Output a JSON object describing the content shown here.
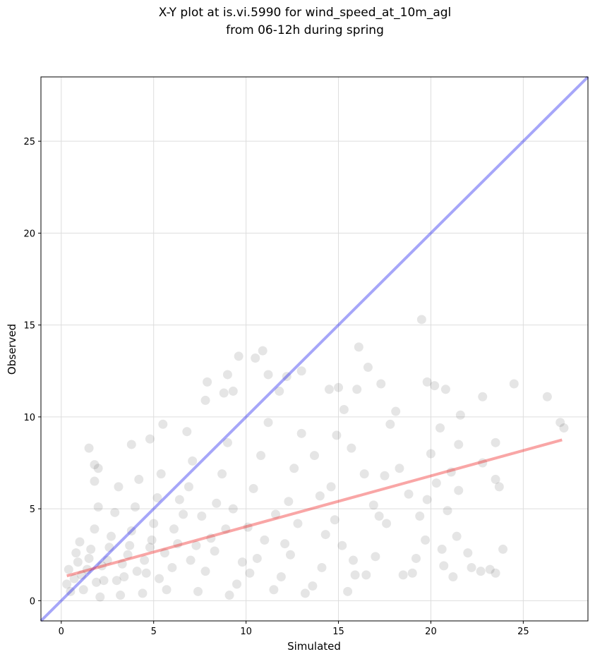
{
  "chart_data": {
    "type": "scatter",
    "title_lines": [
      "X-Y plot at is.vi.5990 for wind_speed_at_10m_agl",
      "from 06-12h during spring"
    ],
    "xlabel": "Simulated",
    "ylabel": "Observed",
    "xlim": [
      -1.1,
      28.5
    ],
    "ylim": [
      -1.1,
      28.5
    ],
    "xticks": [
      0,
      5,
      10,
      15,
      20,
      25
    ],
    "yticks": [
      0,
      5,
      10,
      15,
      20,
      25
    ],
    "grid": true,
    "colors": {
      "points": "#000000",
      "identity_line": "#0000ee",
      "fit_line": "#ee0000",
      "grid": "#dddddd"
    },
    "identity_line": {
      "x": [
        -1.1,
        28.5
      ],
      "y": [
        -1.1,
        28.5
      ]
    },
    "fit_line": {
      "x": [
        0.3,
        27.1
      ],
      "y": [
        1.35,
        8.75
      ]
    },
    "points": [
      [
        1.5,
        8.3
      ],
      [
        1.8,
        7.4
      ],
      [
        1.8,
        6.5
      ],
      [
        2.0,
        7.2
      ],
      [
        3.8,
        8.5
      ],
      [
        4.8,
        8.8
      ],
      [
        5.5,
        9.6
      ],
      [
        6.8,
        9.2
      ],
      [
        7.8,
        10.9
      ],
      [
        7.9,
        11.9
      ],
      [
        8.8,
        11.3
      ],
      [
        9.0,
        12.3
      ],
      [
        9.3,
        11.4
      ],
      [
        9.6,
        13.3
      ],
      [
        10.5,
        13.2
      ],
      [
        10.9,
        13.6
      ],
      [
        11.2,
        12.3
      ],
      [
        11.8,
        11.4
      ],
      [
        12.2,
        12.2
      ],
      [
        13.0,
        12.5
      ],
      [
        14.5,
        11.5
      ],
      [
        15.0,
        11.6
      ],
      [
        16.0,
        11.5
      ],
      [
        16.1,
        13.8
      ],
      [
        16.6,
        12.7
      ],
      [
        17.3,
        11.8
      ],
      [
        19.5,
        15.3
      ],
      [
        19.8,
        11.9
      ],
      [
        20.2,
        11.7
      ],
      [
        20.8,
        11.5
      ],
      [
        22.8,
        11.1
      ],
      [
        24.5,
        11.8
      ],
      [
        26.3,
        11.1
      ],
      [
        27.0,
        9.7
      ],
      [
        27.2,
        9.4
      ],
      [
        23.5,
        8.6
      ],
      [
        23.5,
        6.6
      ],
      [
        23.7,
        6.2
      ],
      [
        22.8,
        7.5
      ],
      [
        22.0,
        2.6
      ],
      [
        22.2,
        1.8
      ],
      [
        22.7,
        1.6
      ],
      [
        23.2,
        1.7
      ],
      [
        23.5,
        1.5
      ],
      [
        23.9,
        2.8
      ],
      [
        21.6,
        10.1
      ],
      [
        21.5,
        8.5
      ],
      [
        21.5,
        6.0
      ],
      [
        21.4,
        3.5
      ],
      [
        21.2,
        1.3
      ],
      [
        20.6,
        2.8
      ],
      [
        20.7,
        1.9
      ],
      [
        20.5,
        9.4
      ],
      [
        20.0,
        8.0
      ],
      [
        19.8,
        5.5
      ],
      [
        19.7,
        3.3
      ],
      [
        19.2,
        2.3
      ],
      [
        19.0,
        1.5
      ],
      [
        18.5,
        1.4
      ],
      [
        18.1,
        10.3
      ],
      [
        17.8,
        9.6
      ],
      [
        17.5,
        6.8
      ],
      [
        17.2,
        4.6
      ],
      [
        17.0,
        2.4
      ],
      [
        16.5,
        1.4
      ],
      [
        15.9,
        1.4
      ],
      [
        15.5,
        0.5
      ],
      [
        15.3,
        10.4
      ],
      [
        14.9,
        9.0
      ],
      [
        14.6,
        6.2
      ],
      [
        14.3,
        3.6
      ],
      [
        14.1,
        1.8
      ],
      [
        13.6,
        0.8
      ],
      [
        13.2,
        0.4
      ],
      [
        13.0,
        9.1
      ],
      [
        12.6,
        7.2
      ],
      [
        12.3,
        5.4
      ],
      [
        12.1,
        3.1
      ],
      [
        11.9,
        1.3
      ],
      [
        11.5,
        0.6
      ],
      [
        11.2,
        9.7
      ],
      [
        10.8,
        7.9
      ],
      [
        10.4,
        6.1
      ],
      [
        10.1,
        4.0
      ],
      [
        9.8,
        2.1
      ],
      [
        9.5,
        0.9
      ],
      [
        9.1,
        0.3
      ],
      [
        9.0,
        8.6
      ],
      [
        8.7,
        6.9
      ],
      [
        8.4,
        5.3
      ],
      [
        8.1,
        3.4
      ],
      [
        7.8,
        1.6
      ],
      [
        7.4,
        0.5
      ],
      [
        7.1,
        7.6
      ],
      [
        6.9,
        6.2
      ],
      [
        6.6,
        4.7
      ],
      [
        6.3,
        3.1
      ],
      [
        6.0,
        1.8
      ],
      [
        5.7,
        0.6
      ],
      [
        5.4,
        6.9
      ],
      [
        5.2,
        5.6
      ],
      [
        5.0,
        4.2
      ],
      [
        4.8,
        2.9
      ],
      [
        4.6,
        1.5
      ],
      [
        4.4,
        0.4
      ],
      [
        4.2,
        6.6
      ],
      [
        4.0,
        5.1
      ],
      [
        3.8,
        3.8
      ],
      [
        3.6,
        2.5
      ],
      [
        3.4,
        1.3
      ],
      [
        3.2,
        0.3
      ],
      [
        3.1,
        6.2
      ],
      [
        2.9,
        4.8
      ],
      [
        2.7,
        3.5
      ],
      [
        2.5,
        2.2
      ],
      [
        2.3,
        1.1
      ],
      [
        2.1,
        0.2
      ],
      [
        2.0,
        5.1
      ],
      [
        1.8,
        3.9
      ],
      [
        1.6,
        2.8
      ],
      [
        1.4,
        1.7
      ],
      [
        1.2,
        0.6
      ],
      [
        1.0,
        3.2
      ],
      [
        0.9,
        2.1
      ],
      [
        0.7,
        1.2
      ],
      [
        0.5,
        0.5
      ],
      [
        0.4,
        1.7
      ],
      [
        0.3,
        0.9
      ],
      [
        15.7,
        8.3
      ],
      [
        16.4,
        6.9
      ],
      [
        16.9,
        5.2
      ],
      [
        17.6,
        4.2
      ],
      [
        18.3,
        7.2
      ],
      [
        18.8,
        5.8
      ],
      [
        19.4,
        4.6
      ],
      [
        20.3,
        6.4
      ],
      [
        20.9,
        4.9
      ],
      [
        21.1,
        7.0
      ],
      [
        13.7,
        7.9
      ],
      [
        14.0,
        5.7
      ],
      [
        14.8,
        4.4
      ],
      [
        15.2,
        3.0
      ],
      [
        15.8,
        2.2
      ],
      [
        12.8,
        4.2
      ],
      [
        12.4,
        2.5
      ],
      [
        11.6,
        4.7
      ],
      [
        11.0,
        3.3
      ],
      [
        10.6,
        2.3
      ],
      [
        10.2,
        1.5
      ],
      [
        9.3,
        5.0
      ],
      [
        8.9,
        3.9
      ],
      [
        8.3,
        2.7
      ],
      [
        7.6,
        4.6
      ],
      [
        7.3,
        3.0
      ],
      [
        7.0,
        2.2
      ],
      [
        6.4,
        5.5
      ],
      [
        6.1,
        3.9
      ],
      [
        5.6,
        2.6
      ],
      [
        5.3,
        1.2
      ],
      [
        4.9,
        3.3
      ],
      [
        4.5,
        2.2
      ],
      [
        4.1,
        1.6
      ],
      [
        3.7,
        3.0
      ],
      [
        3.3,
        2.0
      ],
      [
        3.0,
        1.1
      ],
      [
        2.6,
        2.9
      ],
      [
        2.2,
        1.9
      ],
      [
        1.9,
        1.0
      ],
      [
        1.5,
        2.3
      ],
      [
        1.1,
        1.4
      ],
      [
        0.8,
        2.6
      ]
    ]
  }
}
